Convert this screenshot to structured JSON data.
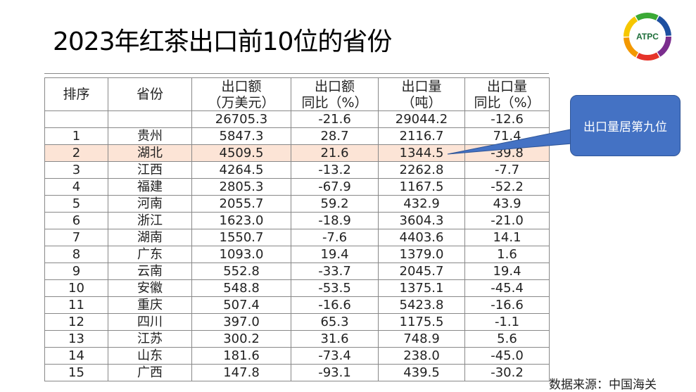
{
  "title": "2023年红茶出口前10位的省份",
  "logo": {
    "text": "ATPC"
  },
  "table": {
    "headers": [
      [
        "排序",
        ""
      ],
      [
        "省份",
        ""
      ],
      [
        "出口额",
        "（万美元）"
      ],
      [
        "出口额",
        "同比（%）"
      ],
      [
        "出口量",
        "（吨）"
      ],
      [
        "出口量",
        "同比（%）"
      ]
    ],
    "rows": [
      [
        "",
        "",
        "26705.3",
        "-21.6",
        "29044.2",
        "-12.6"
      ],
      [
        "1",
        "贵州",
        "5847.3",
        "28.7",
        "2116.7",
        "71.4"
      ],
      [
        "2",
        "湖北",
        "4509.5",
        "21.6",
        "1344.5",
        "-39.8"
      ],
      [
        "3",
        "江西",
        "4264.5",
        "-13.2",
        "2262.8",
        "-7.7"
      ],
      [
        "4",
        "福建",
        "2805.3",
        "-67.9",
        "1167.5",
        "-52.2"
      ],
      [
        "5",
        "河南",
        "2055.7",
        "59.2",
        "432.9",
        "43.9"
      ],
      [
        "6",
        "浙江",
        "1623.0",
        "-18.9",
        "3604.3",
        "-21.0"
      ],
      [
        "7",
        "湖南",
        "1550.7",
        "-7.6",
        "4403.6",
        "14.1"
      ],
      [
        "8",
        "广东",
        "1093.0",
        "19.4",
        "1379.0",
        "1.6"
      ],
      [
        "9",
        "云南",
        "552.8",
        "-33.7",
        "2045.7",
        "19.4"
      ],
      [
        "10",
        "安徽",
        "548.8",
        "-53.5",
        "1375.1",
        "-45.4"
      ],
      [
        "11",
        "重庆",
        "507.4",
        "-16.6",
        "5423.8",
        "-16.6"
      ],
      [
        "12",
        "四川",
        "397.0",
        "65.3",
        "1175.5",
        "-1.1"
      ],
      [
        "13",
        "江苏",
        "300.2",
        "31.6",
        "748.9",
        "5.6"
      ],
      [
        "14",
        "山东",
        "181.6",
        "-73.4",
        "238.0",
        "-45.0"
      ],
      [
        "15",
        "广西",
        "147.8",
        "-93.1",
        "439.5",
        "-30.2"
      ]
    ],
    "highlight_row_index": 2,
    "highlight_color": "#fce4d6"
  },
  "callout": {
    "text": "出口量居第九位",
    "color": "#4472c4"
  },
  "source": "数据来源：中国海关"
}
